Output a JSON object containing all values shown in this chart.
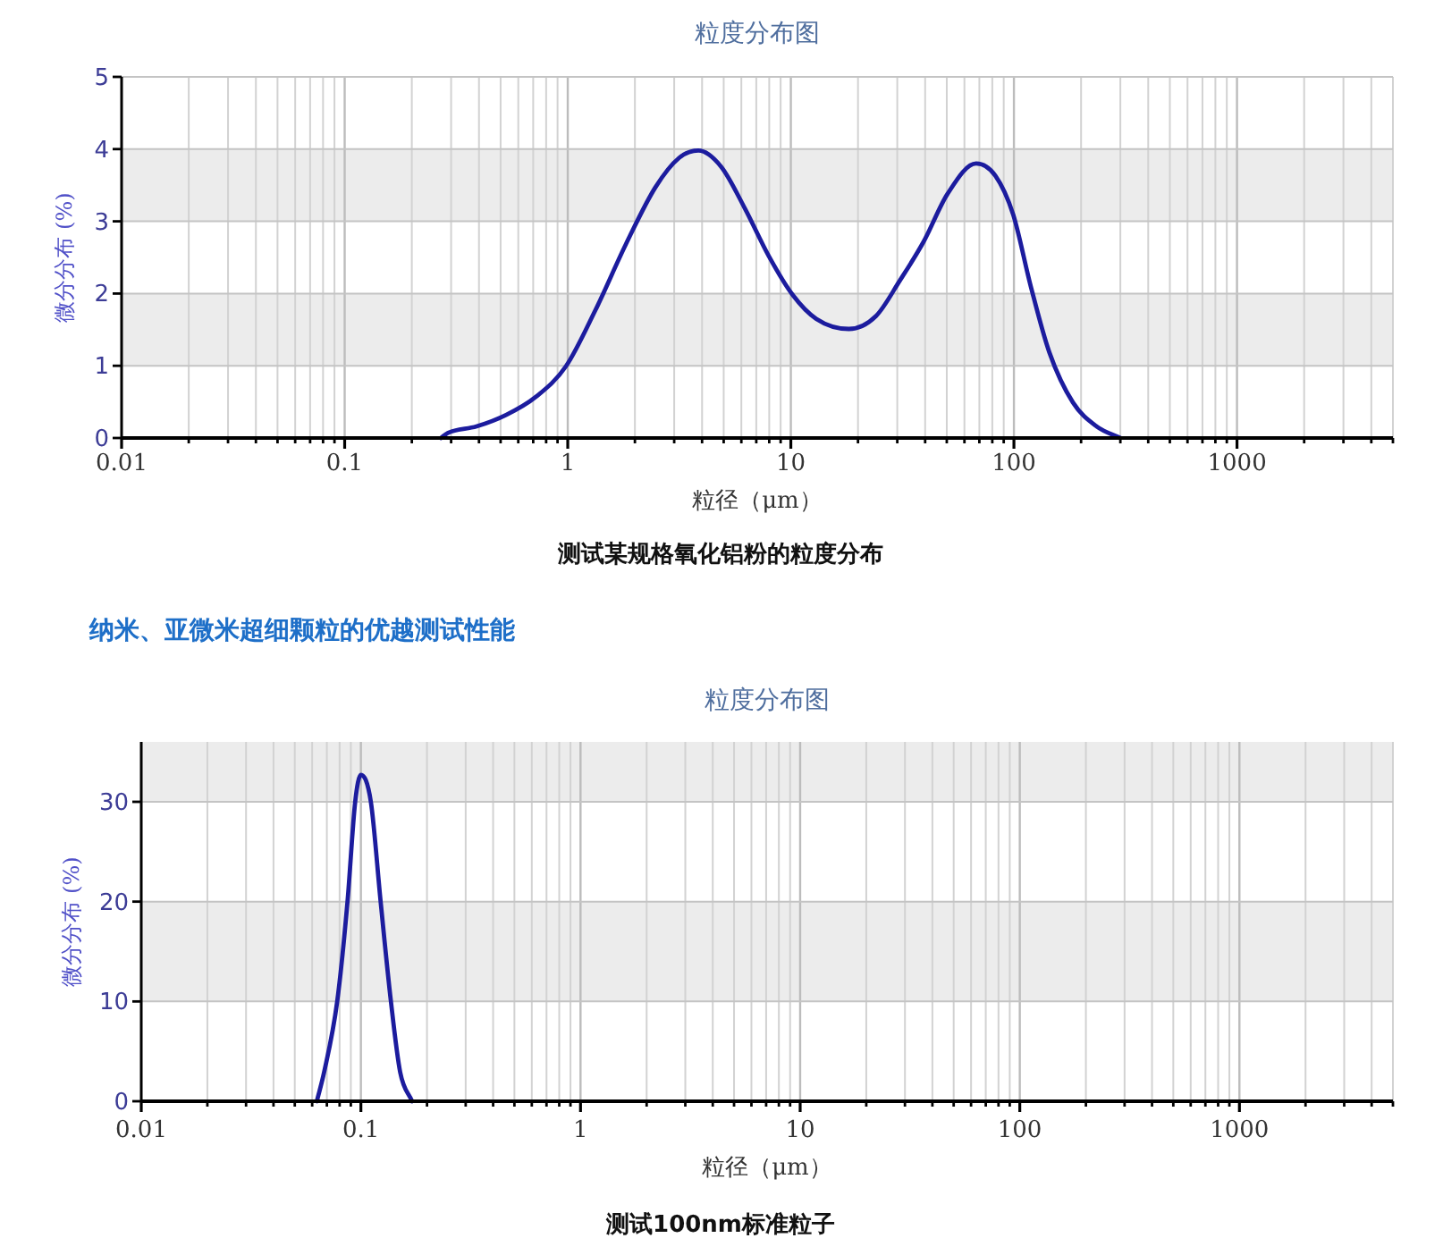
{
  "chart_data": [
    {
      "type": "line",
      "title": "粒度分布图",
      "xlabel": "粒径（μm）",
      "ylabel": "微分分布 (%)",
      "log": "x",
      "xlim": [
        0.01,
        5000
      ],
      "xticks": [
        0.01,
        0.1,
        1,
        10,
        100,
        1000
      ],
      "ylim": [
        0,
        5
      ],
      "yticks": [
        0,
        1,
        2,
        3,
        4,
        5
      ],
      "grid": true,
      "bands": [
        {
          "axis": "y",
          "from": 1,
          "to": 2,
          "color": "#ececec"
        },
        {
          "axis": "y",
          "from": 3,
          "to": 4,
          "color": "#ececec"
        }
      ],
      "series": [
        {
          "color": "#1c1c9e",
          "x": [
            0.27,
            0.29,
            0.39,
            0.53,
            0.72,
            0.98,
            1.33,
            1.82,
            2.47,
            3.16,
            3.85,
            4.86,
            6.22,
            7.96,
            10.2,
            13.0,
            18.2,
            24.1,
            30.8,
            39.4,
            50.4,
            67.7,
            82.6,
            99.3,
            119,
            144,
            184,
            235,
            300
          ],
          "values": [
            0,
            0.07,
            0.16,
            0.32,
            0.57,
            0.99,
            1.77,
            2.68,
            3.47,
            3.88,
            3.98,
            3.76,
            3.18,
            2.52,
            1.98,
            1.65,
            1.51,
            1.69,
            2.18,
            2.72,
            3.38,
            3.8,
            3.63,
            3.09,
            2.1,
            1.19,
            0.49,
            0.16,
            0
          ]
        }
      ],
      "annotations": [
        "测试某规格氧化铝粉的粒度分布"
      ]
    },
    {
      "type": "line",
      "title": "粒度分布图",
      "xlabel": "粒径（μm）",
      "ylabel": "微分分布 (%)",
      "log": "x",
      "xlim": [
        0.01,
        5000
      ],
      "xticks": [
        0.01,
        0.1,
        1,
        10,
        100,
        1000
      ],
      "ylim": [
        0,
        36
      ],
      "yticks": [
        0,
        10,
        20,
        30
      ],
      "grid": true,
      "bands": [
        {
          "axis": "y",
          "from": 10,
          "to": 20,
          "color": "#ececec"
        },
        {
          "axis": "y",
          "from": 30,
          "to": 36,
          "color": "#ececec"
        }
      ],
      "series": [
        {
          "color": "#1c1c9e",
          "x": [
            0.063,
            0.068,
            0.078,
            0.0869,
            0.0942,
            0.1,
            0.111,
            0.123,
            0.137,
            0.151,
            0.171
          ],
          "values": [
            0,
            2.9,
            10,
            20,
            30,
            32.7,
            30,
            20,
            10,
            2.9,
            0
          ]
        }
      ],
      "annotations": [
        "纳米、亚微米超细颗粒的优越测试性能",
        "测试100nm标准粒子"
      ]
    }
  ]
}
